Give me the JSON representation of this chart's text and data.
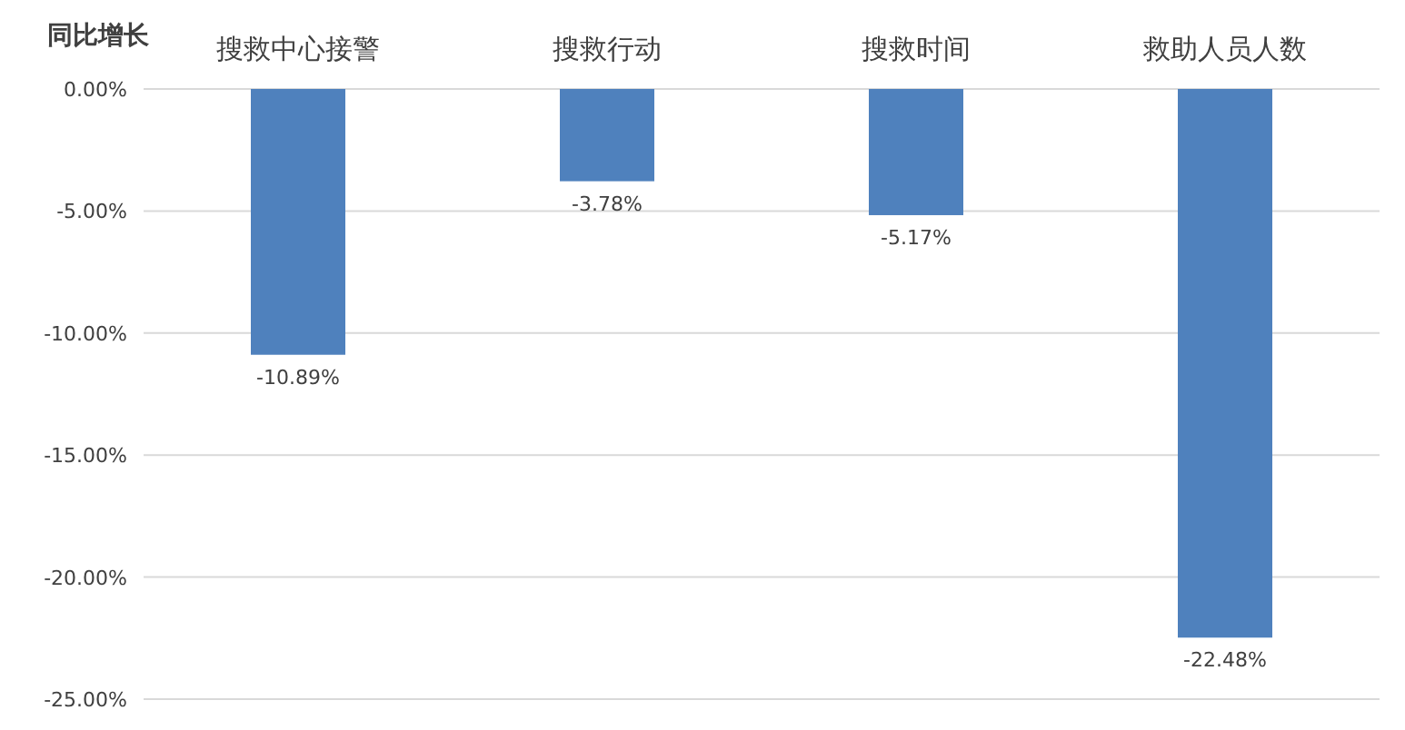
{
  "chart_data": {
    "type": "bar",
    "ylabel": "同比增长",
    "categories": [
      "搜救中心接警",
      "搜救行动",
      "搜救时间",
      "救助人员人数"
    ],
    "values": [
      -10.89,
      -3.78,
      -5.17,
      -22.48
    ],
    "value_labels": [
      "-10.89%",
      "-3.78%",
      "-5.17%",
      "-22.48%"
    ],
    "color": "#4f81bd",
    "ylim": [
      -25,
      0
    ],
    "yticks": [
      {
        "value": 0,
        "label": "0.00%"
      },
      {
        "value": -5,
        "label": "-5.00%"
      },
      {
        "value": -10,
        "label": "-10.00%"
      },
      {
        "value": -15,
        "label": "-15.00%"
      },
      {
        "value": -20,
        "label": "-20.00%"
      },
      {
        "value": -25,
        "label": "-25.00%"
      }
    ],
    "grid": "y"
  }
}
